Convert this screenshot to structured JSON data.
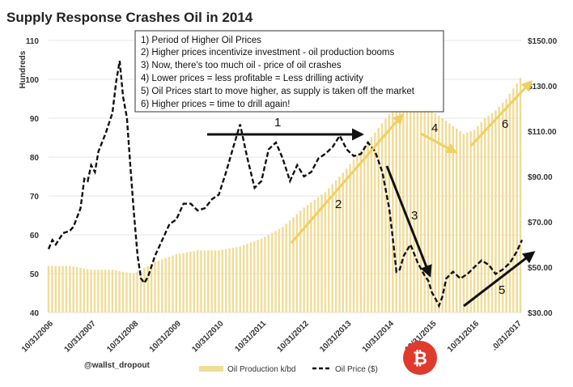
{
  "chart_data": {
    "type": "bar+line",
    "title": "Supply Response Crashes Oil in 2014",
    "y_left_label": "Hundreds",
    "y_left_ticks": [
      "110",
      "100",
      "90",
      "80",
      "70",
      "60",
      "50",
      "40"
    ],
    "y_left_range": [
      40,
      110
    ],
    "y_right_ticks": [
      "$150.00",
      "$130.00",
      "$110.00",
      "$90.00",
      "$70.00",
      "$50.00",
      "$30.00"
    ],
    "y_right_range": [
      30,
      150
    ],
    "x_ticks": [
      "10/31/2006",
      "10/31/2007",
      "10/31/2008",
      "10/31/2009",
      "10/31/2010",
      "10/31/2011",
      "10/31/2012",
      "10/31/2013",
      "10/31/2014",
      "10/31/2015",
      "10/31/2016",
      ".0/31/2017"
    ],
    "x_range": [
      2006.83,
      2017.95
    ],
    "legend": {
      "production": "Oil Production k/bd",
      "price": "Oil Price ($)"
    },
    "colors": {
      "production": "#f0dc96",
      "price": "#111111"
    },
    "series": [
      {
        "name": "Oil Production k/bd",
        "x": [
          2006.83,
          2007.33,
          2007.83,
          2008.33,
          2008.83,
          2009.33,
          2009.83,
          2010.33,
          2010.83,
          2011.33,
          2011.83,
          2012.33,
          2012.83,
          2013.33,
          2013.83,
          2014.33,
          2014.83,
          2015.08,
          2015.33,
          2015.58,
          2015.83,
          2016.08,
          2016.33,
          2016.58,
          2016.83,
          2017.08,
          2017.33,
          2017.58,
          2017.83,
          2017.95
        ],
        "values": [
          52,
          52,
          51,
          51,
          50,
          53,
          55,
          56,
          56,
          57,
          59,
          62,
          67,
          71,
          77,
          84,
          91,
          96,
          95,
          94,
          92,
          90,
          88,
          86,
          87,
          90,
          92,
          95,
          99,
          101
        ]
      },
      {
        "name": "Oil Price ($)",
        "x": [
          2006.83,
          2006.92,
          2007.0,
          2007.17,
          2007.33,
          2007.42,
          2007.5,
          2007.58,
          2007.67,
          2007.75,
          2007.83,
          2007.92,
          2008.0,
          2008.17,
          2008.33,
          2008.42,
          2008.5,
          2008.58,
          2008.67,
          2008.75,
          2008.83,
          2008.92,
          2009.0,
          2009.08,
          2009.17,
          2009.33,
          2009.5,
          2009.67,
          2009.83,
          2010.0,
          2010.17,
          2010.33,
          2010.5,
          2010.67,
          2010.83,
          2011.0,
          2011.17,
          2011.33,
          2011.5,
          2011.67,
          2011.83,
          2012.0,
          2012.17,
          2012.33,
          2012.5,
          2012.67,
          2012.83,
          2013.0,
          2013.17,
          2013.33,
          2013.5,
          2013.67,
          2013.83,
          2014.0,
          2014.17,
          2014.33,
          2014.5,
          2014.67,
          2014.83,
          2014.92,
          2015.0,
          2015.08,
          2015.17,
          2015.33,
          2015.5,
          2015.67,
          2015.75,
          2015.83,
          2015.92,
          2016.0,
          2016.08,
          2016.17,
          2016.33,
          2016.5,
          2016.67,
          2016.83,
          2017.0,
          2017.17,
          2017.33,
          2017.5,
          2017.67,
          2017.83,
          2017.95
        ],
        "values": [
          58,
          62,
          60,
          65,
          66,
          68,
          72,
          76,
          89,
          88,
          95,
          92,
          101,
          109,
          118,
          132,
          141,
          125,
          116,
          95,
          75,
          55,
          45,
          43,
          46,
          55,
          62,
          69,
          71,
          78,
          78,
          75,
          76,
          80,
          82,
          92,
          103,
          113,
          98,
          85,
          88,
          102,
          105,
          98,
          88,
          95,
          90,
          92,
          98,
          100,
          103,
          108,
          102,
          99,
          100,
          105,
          101,
          92,
          76,
          62,
          48,
          49,
          55,
          60,
          52,
          46,
          44,
          39,
          36,
          33,
          37,
          45,
          48,
          45,
          47,
          50,
          53,
          51,
          47,
          49,
          52,
          57,
          62
        ]
      }
    ],
    "annotations": {
      "notes": [
        "1) Period of Higher Oil Prices",
        "2) Higher prices incentivize investment - oil production booms",
        "3) Now, there's too much oil - price of oil crashes",
        "4) Lower prices = less profitable = Less drilling activity",
        "5) Oil Prices start to move higher, as supply is taken off the market",
        "6) Higher prices = time to drill again!"
      ],
      "markers": [
        "1",
        "2",
        "3",
        "4",
        "5",
        "6"
      ]
    },
    "credit": "@wallst_dropout"
  }
}
